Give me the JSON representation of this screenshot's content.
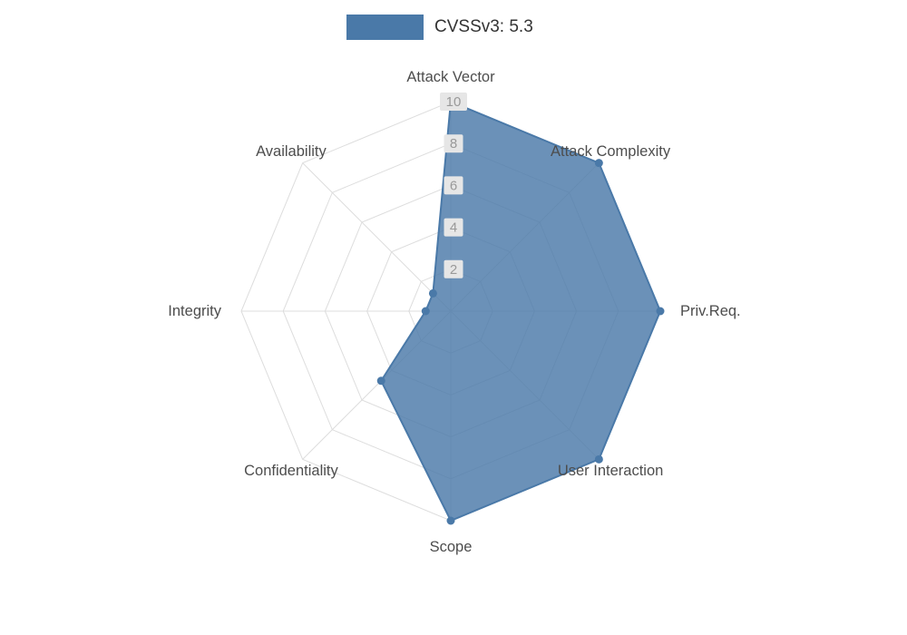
{
  "legend": {
    "label": "CVSSv3: 5.3",
    "color": "#4a79a8"
  },
  "chart_data": {
    "type": "radar",
    "title": "CVSSv3: 5.3",
    "legend_position": "top",
    "grid": true,
    "axis_range": [
      0,
      10
    ],
    "ticks": [
      2,
      4,
      6,
      8,
      10
    ],
    "indicators": [
      "Attack Vector",
      "Attack Complexity",
      "Priv.Req.",
      "User Interaction",
      "Scope",
      "Confidentiality",
      "Integrity",
      "Availability"
    ],
    "series": [
      {
        "name": "CVSSv3: 5.3",
        "values": [
          10,
          10,
          10,
          10,
          10,
          4.7,
          1.2,
          1.2
        ],
        "color": "#4a79a8",
        "fill_opacity": 0.82
      }
    ],
    "colors": {
      "grid_line": "#dddddd",
      "tick_label_text": "#999999",
      "tick_label_bg": "#e6e6e6",
      "axis_name_text": "#4d4d4d"
    }
  }
}
